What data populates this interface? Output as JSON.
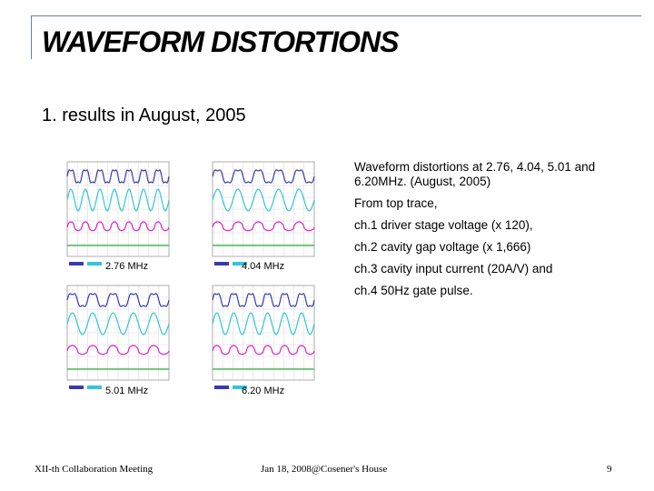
{
  "slide": {
    "title": "WAVEFORM DISTORTIONS",
    "subtitle": "1. results in August, 2005",
    "description": {
      "line1": "Waveform distortions at 2.76, 4.04, 5.01 and 6.20MHz. (August, 2005)",
      "line2": "From top trace,",
      "line3": "ch.1 driver stage voltage (x 120),",
      "line4": "ch.2 cavity gap voltage (x 1,666)",
      "line5": "ch.3 cavity input current (20A/V) and",
      "line6": "ch.4 50Hz gate pulse."
    }
  },
  "scopes": [
    {
      "label": "2.76 MHz",
      "cycles": 7
    },
    {
      "label": "4.04 MHz",
      "cycles": 5
    },
    {
      "label": "5.01 MHz",
      "cycles": 5
    },
    {
      "label": "6.20 MHz",
      "cycles": 6
    }
  ],
  "footer": {
    "left": "XII-th Collaboration Meeting",
    "center": "Jan 18, 2008@Cosener's House",
    "page": "9"
  },
  "colors": {
    "ch1": "#3a3ab0",
    "ch2": "#33c6d6",
    "ch3": "#e020c8",
    "ch4": "#2fae3a",
    "rule": "#6b7f99"
  }
}
